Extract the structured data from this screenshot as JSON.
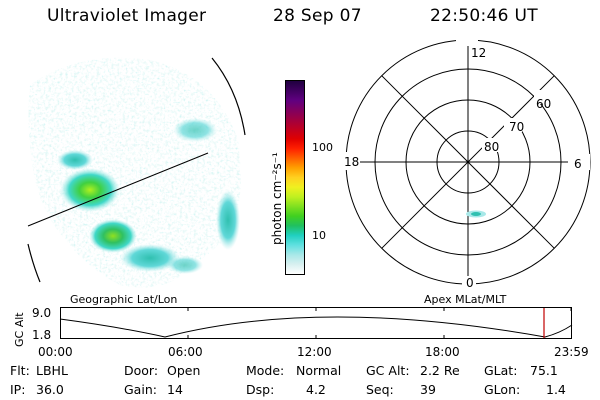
{
  "header": {
    "instrument": "Ultraviolet Imager",
    "date": "28 Sep 07",
    "time": "22:50:46 UT"
  },
  "colorbar": {
    "unit_label": "photon cm⁻²s⁻¹",
    "ticks": [
      "100",
      "10"
    ],
    "scale": "log",
    "colors": [
      "#ffffff",
      "#d8f0f0",
      "#a8e8e8",
      "#60e0e0",
      "#20d0c0",
      "#20c060",
      "#40d020",
      "#80e020",
      "#c0f020",
      "#f0f020",
      "#ffd020",
      "#ffa000",
      "#ff6000",
      "#ff2000",
      "#e00000",
      "#c00020",
      "#a00040",
      "#800060",
      "#600080",
      "#400060",
      "#200040"
    ]
  },
  "polar_plot": {
    "mlt_labels": {
      "top": "12",
      "left": "18",
      "right": "6",
      "bottom": "0"
    },
    "lat_labels": [
      "60",
      "70",
      "80"
    ]
  },
  "image_panel": {
    "label": "Geographic Lat/Lon"
  },
  "polar_panel": {
    "label": "Apex MLat/MLT"
  },
  "altitude_plot": {
    "ylabel": "GC Alt",
    "yticks": [
      "9.0",
      "1.8"
    ],
    "xticks": [
      "00:00",
      "06:00",
      "12:00",
      "18:00",
      "23:59"
    ],
    "current_time_marker_color": "#c00000"
  },
  "footer": {
    "rows": [
      [
        {
          "key": "Flt:",
          "value": "LBHL"
        },
        {
          "key": "Door:",
          "value": "Open"
        },
        {
          "key": "Mode:",
          "value": "Normal"
        },
        {
          "key": "GC Alt:",
          "value": "2.2 Re"
        },
        {
          "key": "GLat:",
          "value": "75.1"
        }
      ],
      [
        {
          "key": "IP:",
          "value": "36.0"
        },
        {
          "key": "Gain:",
          "value": "14"
        },
        {
          "key": "Dsp:",
          "value": "4.2"
        },
        {
          "key": "Seq:",
          "value": "39"
        },
        {
          "key": "GLon:",
          "value": "1.4"
        }
      ]
    ]
  }
}
